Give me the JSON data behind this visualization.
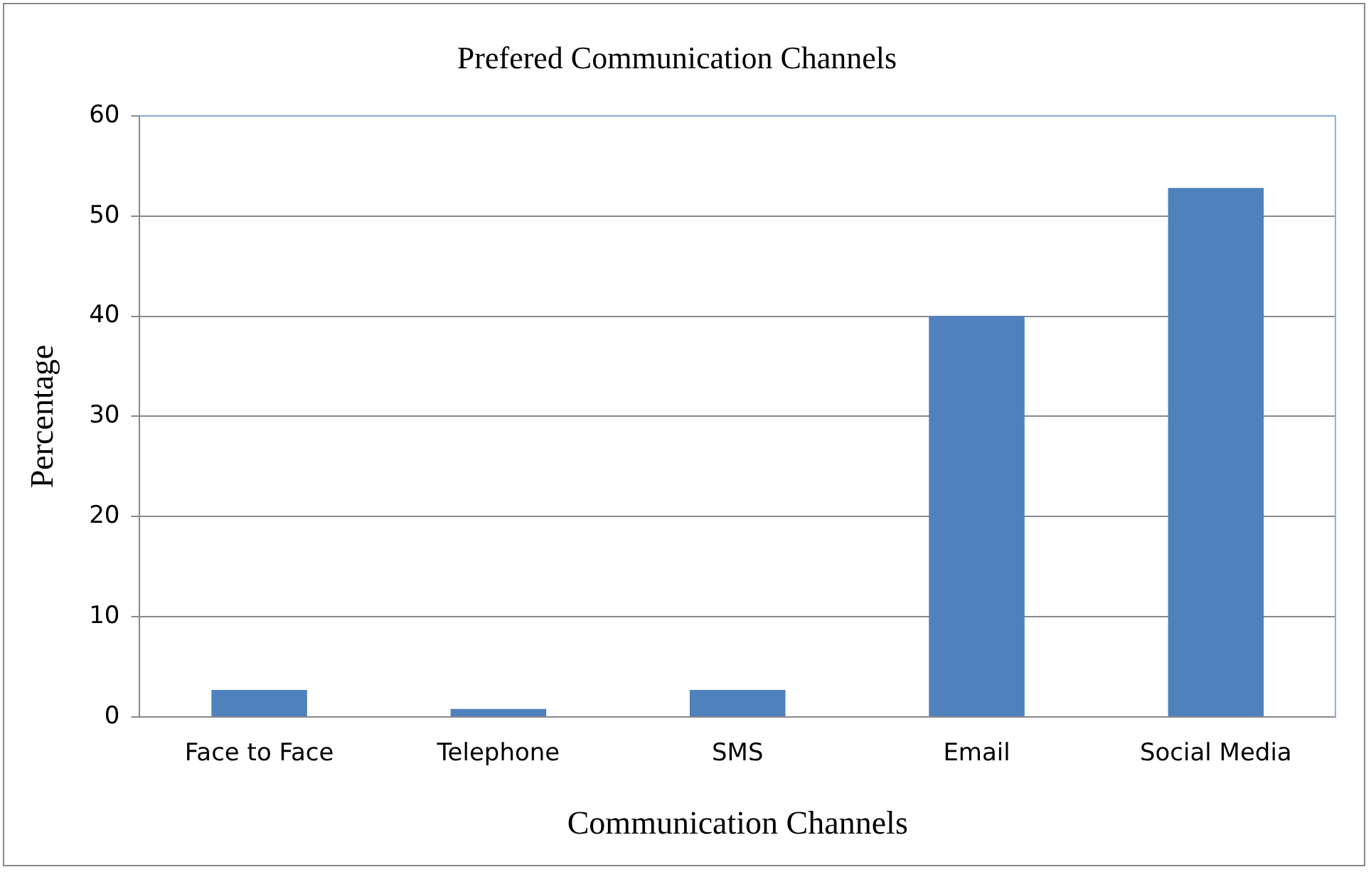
{
  "chart_data": {
    "type": "bar",
    "title": "Prefered Communication Channels",
    "xlabel": "Communication Channels",
    "ylabel": "Percentage",
    "categories": [
      "Face to Face",
      "Telephone",
      "SMS",
      "Email",
      "Social Media"
    ],
    "values": [
      2.7,
      0.8,
      2.7,
      40,
      52.8
    ],
    "color": "#4f81bd",
    "ylim": [
      0,
      60
    ],
    "yticks": [
      0,
      10,
      20,
      30,
      40,
      50,
      60
    ],
    "grid": "y",
    "legend": false
  }
}
